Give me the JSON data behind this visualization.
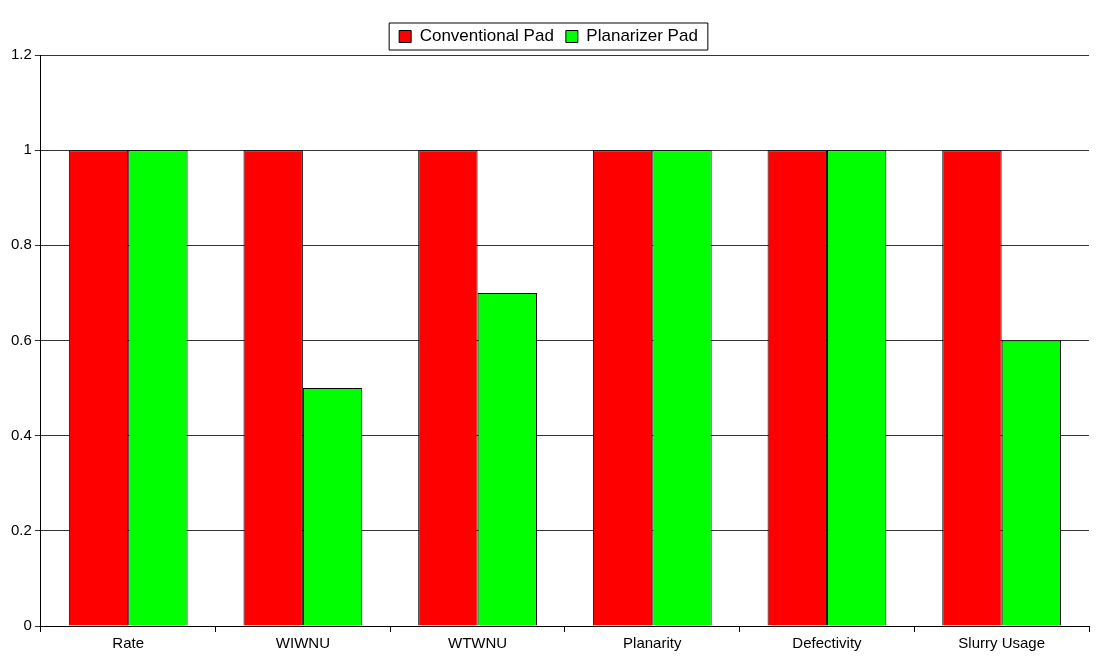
{
  "chart_data": {
    "type": "bar",
    "categories": [
      "Rate",
      "WIWNU",
      "WTWNU",
      "Planarity",
      "Defectivity",
      "Slurry Usage"
    ],
    "series": [
      {
        "name": "Conventional Pad",
        "color": "#ff0000",
        "values": [
          1,
          1,
          1,
          1,
          1,
          1
        ]
      },
      {
        "name": "Planarizer Pad",
        "color": "#00ff00",
        "values": [
          1,
          0.5,
          0.7,
          1,
          1,
          0.6
        ]
      }
    ],
    "ylim": [
      0,
      1.2
    ],
    "yticks": [
      0,
      0.2,
      0.4,
      0.6,
      0.8,
      1,
      1.2
    ],
    "grid": "y",
    "legend": "top"
  }
}
